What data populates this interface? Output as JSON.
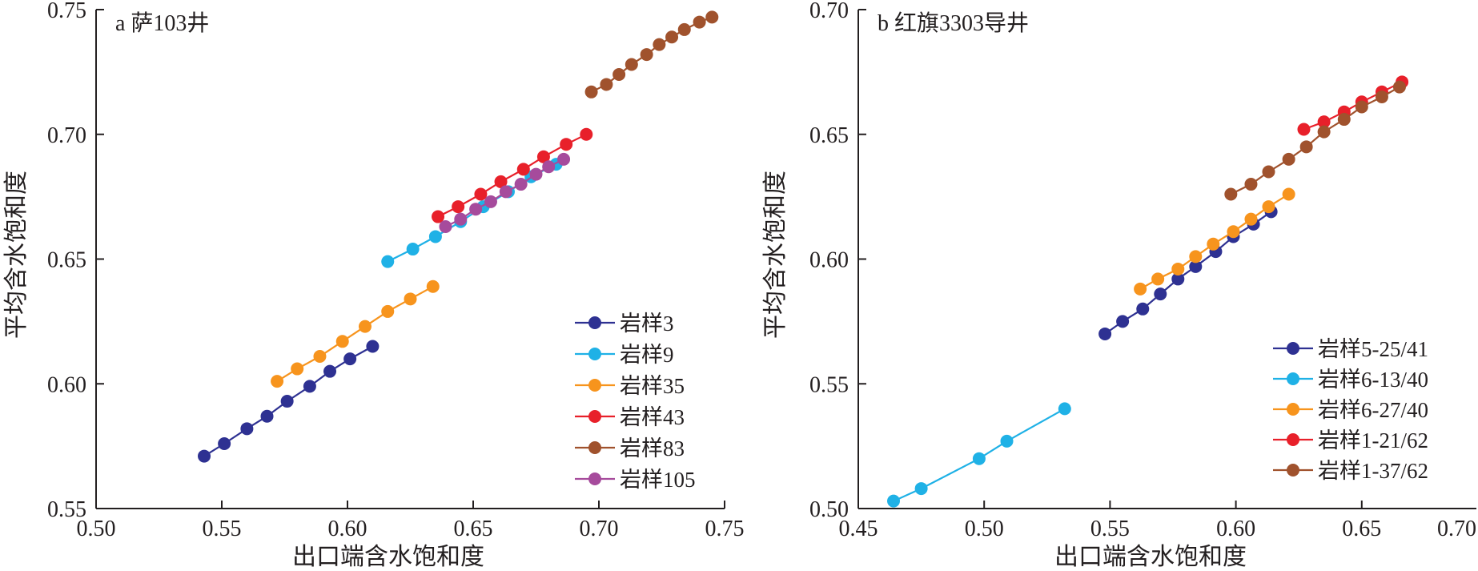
{
  "chart_data": [
    {
      "type": "line",
      "markers": true,
      "title": "a 萨103井",
      "xlabel": "出口端含水饱和度",
      "ylabel": "平均含水饱和度",
      "xlim": [
        0.5,
        0.75
      ],
      "ylim": [
        0.55,
        0.75
      ],
      "xticks": [
        "0.50",
        "0.55",
        "0.60",
        "0.65",
        "0.70",
        "0.75"
      ],
      "yticks": [
        "0.55",
        "0.60",
        "0.65",
        "0.70",
        "0.75"
      ],
      "legend_position": "lower-right",
      "grid": false,
      "series": [
        {
          "name": "岩样3",
          "color": "#2e3192",
          "x": [
            0.543,
            0.551,
            0.56,
            0.568,
            0.576,
            0.585,
            0.593,
            0.601,
            0.61
          ],
          "y": [
            0.571,
            0.576,
            0.582,
            0.587,
            0.593,
            0.599,
            0.605,
            0.61,
            0.615
          ]
        },
        {
          "name": "岩样9",
          "color": "#1fb1e6",
          "x": [
            0.616,
            0.626,
            0.635,
            0.645,
            0.654,
            0.664,
            0.673,
            0.683
          ],
          "y": [
            0.649,
            0.654,
            0.659,
            0.665,
            0.671,
            0.677,
            0.683,
            0.688
          ]
        },
        {
          "name": "岩样35",
          "color": "#f7941d",
          "x": [
            0.572,
            0.58,
            0.589,
            0.598,
            0.607,
            0.616,
            0.625,
            0.634
          ],
          "y": [
            0.601,
            0.606,
            0.611,
            0.617,
            0.623,
            0.629,
            0.634,
            0.639
          ]
        },
        {
          "name": "岩样43",
          "color": "#e8202a",
          "x": [
            0.636,
            0.644,
            0.653,
            0.661,
            0.67,
            0.678,
            0.687,
            0.695
          ],
          "y": [
            0.667,
            0.671,
            0.676,
            0.681,
            0.686,
            0.691,
            0.696,
            0.7
          ]
        },
        {
          "name": "岩样83",
          "color": "#a0522d",
          "x": [
            0.697,
            0.703,
            0.708,
            0.713,
            0.719,
            0.724,
            0.729,
            0.734,
            0.74,
            0.745
          ],
          "y": [
            0.717,
            0.72,
            0.724,
            0.728,
            0.732,
            0.736,
            0.739,
            0.742,
            0.745,
            0.747
          ]
        },
        {
          "name": "岩样105",
          "color": "#a64b9c",
          "x": [
            0.639,
            0.645,
            0.651,
            0.657,
            0.663,
            0.669,
            0.675,
            0.68,
            0.686
          ],
          "y": [
            0.663,
            0.666,
            0.67,
            0.673,
            0.677,
            0.68,
            0.684,
            0.687,
            0.69
          ]
        }
      ]
    },
    {
      "type": "line",
      "markers": true,
      "title": "b 红旗3303导井",
      "xlabel": "出口端含水饱和度",
      "ylabel": "平均含水饱和度",
      "xlim": [
        0.45,
        0.7
      ],
      "ylim": [
        0.5,
        0.7
      ],
      "xticks": [
        "0.45",
        "0.50",
        "0.55",
        "0.60",
        "0.65",
        "0.70"
      ],
      "yticks": [
        "0.50",
        "0.55",
        "0.60",
        "0.65",
        "0.70"
      ],
      "legend_position": "lower-right",
      "grid": false,
      "series": [
        {
          "name": "岩样5-25/41",
          "color": "#2e3192",
          "x": [
            0.548,
            0.555,
            0.563,
            0.57,
            0.577,
            0.584,
            0.592,
            0.599,
            0.607,
            0.614
          ],
          "y": [
            0.57,
            0.575,
            0.58,
            0.586,
            0.592,
            0.597,
            0.603,
            0.609,
            0.614,
            0.619
          ]
        },
        {
          "name": "岩样6-13/40",
          "color": "#1fb1e6",
          "x": [
            0.464,
            0.475,
            0.498,
            0.509,
            0.532
          ],
          "y": [
            0.503,
            0.508,
            0.52,
            0.527,
            0.54
          ]
        },
        {
          "name": "岩样6-27/40",
          "color": "#f7941d",
          "x": [
            0.562,
            0.569,
            0.577,
            0.584,
            0.591,
            0.599,
            0.606,
            0.613,
            0.621
          ],
          "y": [
            0.588,
            0.592,
            0.596,
            0.601,
            0.606,
            0.611,
            0.616,
            0.621,
            0.626
          ]
        },
        {
          "name": "岩样1-21/62",
          "color": "#e8202a",
          "x": [
            0.627,
            0.635,
            0.643,
            0.65,
            0.658,
            0.666
          ],
          "y": [
            0.652,
            0.655,
            0.659,
            0.663,
            0.667,
            0.671
          ]
        },
        {
          "name": "岩样1-37/62",
          "color": "#a0522d",
          "x": [
            0.598,
            0.606,
            0.613,
            0.621,
            0.628,
            0.635,
            0.643,
            0.65,
            0.658,
            0.665
          ],
          "y": [
            0.626,
            0.63,
            0.635,
            0.64,
            0.645,
            0.651,
            0.656,
            0.661,
            0.665,
            0.669
          ]
        }
      ]
    }
  ]
}
